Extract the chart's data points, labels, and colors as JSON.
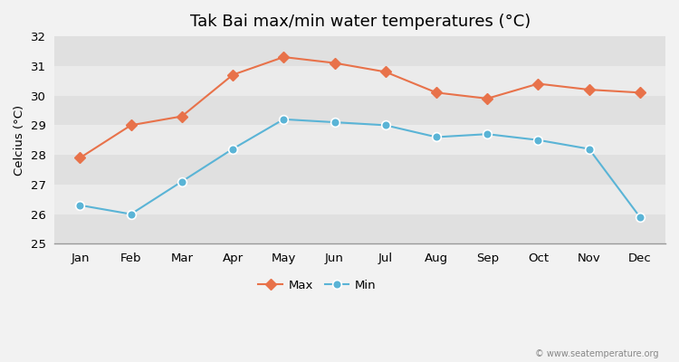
{
  "title": "Tak Bai max/min water temperatures (°C)",
  "ylabel": "Celcius (°C)",
  "months": [
    "Jan",
    "Feb",
    "Mar",
    "Apr",
    "May",
    "Jun",
    "Jul",
    "Aug",
    "Sep",
    "Oct",
    "Nov",
    "Dec"
  ],
  "max_values": [
    27.9,
    29.0,
    29.3,
    30.7,
    31.3,
    31.1,
    30.8,
    30.1,
    29.9,
    30.4,
    30.2,
    30.1
  ],
  "min_values": [
    26.3,
    26.0,
    27.1,
    28.2,
    29.2,
    29.1,
    29.0,
    28.6,
    28.7,
    28.5,
    28.2,
    25.9
  ],
  "max_color": "#e8724a",
  "min_color": "#5ab4d6",
  "background_color": "#f2f2f2",
  "band_light": "#ebebeb",
  "band_dark": "#e0e0e0",
  "ylim": [
    25,
    32
  ],
  "yticks": [
    25,
    26,
    27,
    28,
    29,
    30,
    31,
    32
  ],
  "legend_labels": [
    "Max",
    "Min"
  ],
  "watermark": "© www.seatemperature.org",
  "title_fontsize": 13,
  "label_fontsize": 9.5,
  "tick_fontsize": 9.5
}
